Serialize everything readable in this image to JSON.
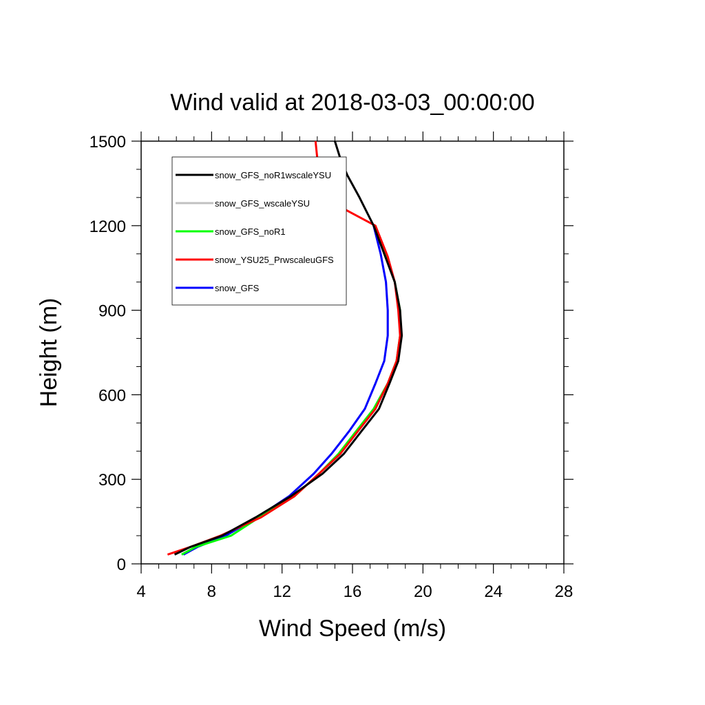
{
  "chart_data": {
    "type": "line",
    "title": "Wind valid at 2018-03-03_00:00:00",
    "xlabel": "Wind Speed (m/s)",
    "ylabel": "Height (m)",
    "xlim": [
      4,
      28
    ],
    "ylim": [
      0,
      1500
    ],
    "xticks": [
      4,
      8,
      12,
      16,
      20,
      24,
      28
    ],
    "yticks": [
      0,
      300,
      600,
      900,
      1200,
      1500
    ],
    "grid": false,
    "legend_position": "top-left",
    "series": [
      {
        "name": "snow_GFS_noR1wscaleYSU",
        "color": "#000000",
        "points": [
          [
            5.9,
            33
          ],
          [
            6.8,
            60
          ],
          [
            8.6,
            100
          ],
          [
            10.5,
            165
          ],
          [
            12.5,
            240
          ],
          [
            14.3,
            320
          ],
          [
            15.5,
            390
          ],
          [
            16.5,
            470
          ],
          [
            17.5,
            550
          ],
          [
            18.1,
            640
          ],
          [
            18.6,
            720
          ],
          [
            18.8,
            810
          ],
          [
            18.7,
            900
          ],
          [
            18.4,
            1000
          ],
          [
            17.8,
            1100
          ],
          [
            17.2,
            1200
          ],
          [
            16.4,
            1300
          ],
          [
            15.7,
            1380
          ],
          [
            15.3,
            1440
          ],
          [
            15.0,
            1500
          ]
        ]
      },
      {
        "name": "snow_GFS_wscaleYSU",
        "color": "#c0c0c0",
        "points": [
          [
            6.4,
            33
          ],
          [
            7.2,
            60
          ],
          [
            8.8,
            100
          ],
          [
            10.6,
            165
          ],
          [
            12.4,
            240
          ],
          [
            13.8,
            320
          ],
          [
            14.8,
            390
          ],
          [
            15.8,
            470
          ],
          [
            16.7,
            550
          ],
          [
            17.3,
            640
          ],
          [
            17.8,
            720
          ],
          [
            18.0,
            810
          ],
          [
            18.0,
            900
          ],
          [
            17.9,
            1000
          ],
          [
            17.6,
            1100
          ],
          [
            17.2,
            1200
          ]
        ]
      },
      {
        "name": "snow_GFS_noR1",
        "color": "#00ff00",
        "points": [
          [
            6.3,
            33
          ],
          [
            7.1,
            60
          ],
          [
            9.1,
            100
          ],
          [
            10.7,
            165
          ],
          [
            12.7,
            240
          ],
          [
            14.1,
            320
          ],
          [
            15.2,
            390
          ],
          [
            16.2,
            470
          ],
          [
            17.2,
            550
          ],
          [
            18.0,
            640
          ],
          [
            18.5,
            720
          ],
          [
            18.7,
            810
          ],
          [
            18.7,
            900
          ],
          [
            18.4,
            1000
          ],
          [
            17.9,
            1100
          ],
          [
            17.3,
            1200
          ]
        ]
      },
      {
        "name": "snow_YSU25_PrwscaleuGFS",
        "color": "#ff0000",
        "points": [
          [
            5.5,
            33
          ],
          [
            6.8,
            60
          ],
          [
            8.5,
            100
          ],
          [
            10.8,
            165
          ],
          [
            12.7,
            240
          ],
          [
            14.1,
            320
          ],
          [
            15.3,
            390
          ],
          [
            16.3,
            470
          ],
          [
            17.3,
            550
          ],
          [
            18.0,
            640
          ],
          [
            18.5,
            720
          ],
          [
            18.7,
            810
          ],
          [
            18.6,
            900
          ],
          [
            18.4,
            1000
          ],
          [
            18.0,
            1090
          ],
          [
            17.3,
            1200
          ],
          [
            14.3,
            1300
          ],
          [
            14.1,
            1380
          ],
          [
            14.0,
            1440
          ],
          [
            13.9,
            1500
          ]
        ]
      },
      {
        "name": "snow_GFS",
        "color": "#0000ff",
        "points": [
          [
            6.4,
            33
          ],
          [
            7.2,
            60
          ],
          [
            8.8,
            100
          ],
          [
            10.6,
            165
          ],
          [
            12.4,
            240
          ],
          [
            13.8,
            320
          ],
          [
            14.8,
            390
          ],
          [
            15.8,
            470
          ],
          [
            16.7,
            550
          ],
          [
            17.3,
            640
          ],
          [
            17.8,
            720
          ],
          [
            18.0,
            810
          ],
          [
            18.0,
            900
          ],
          [
            17.9,
            1000
          ],
          [
            17.6,
            1100
          ],
          [
            17.2,
            1200
          ]
        ]
      }
    ]
  }
}
